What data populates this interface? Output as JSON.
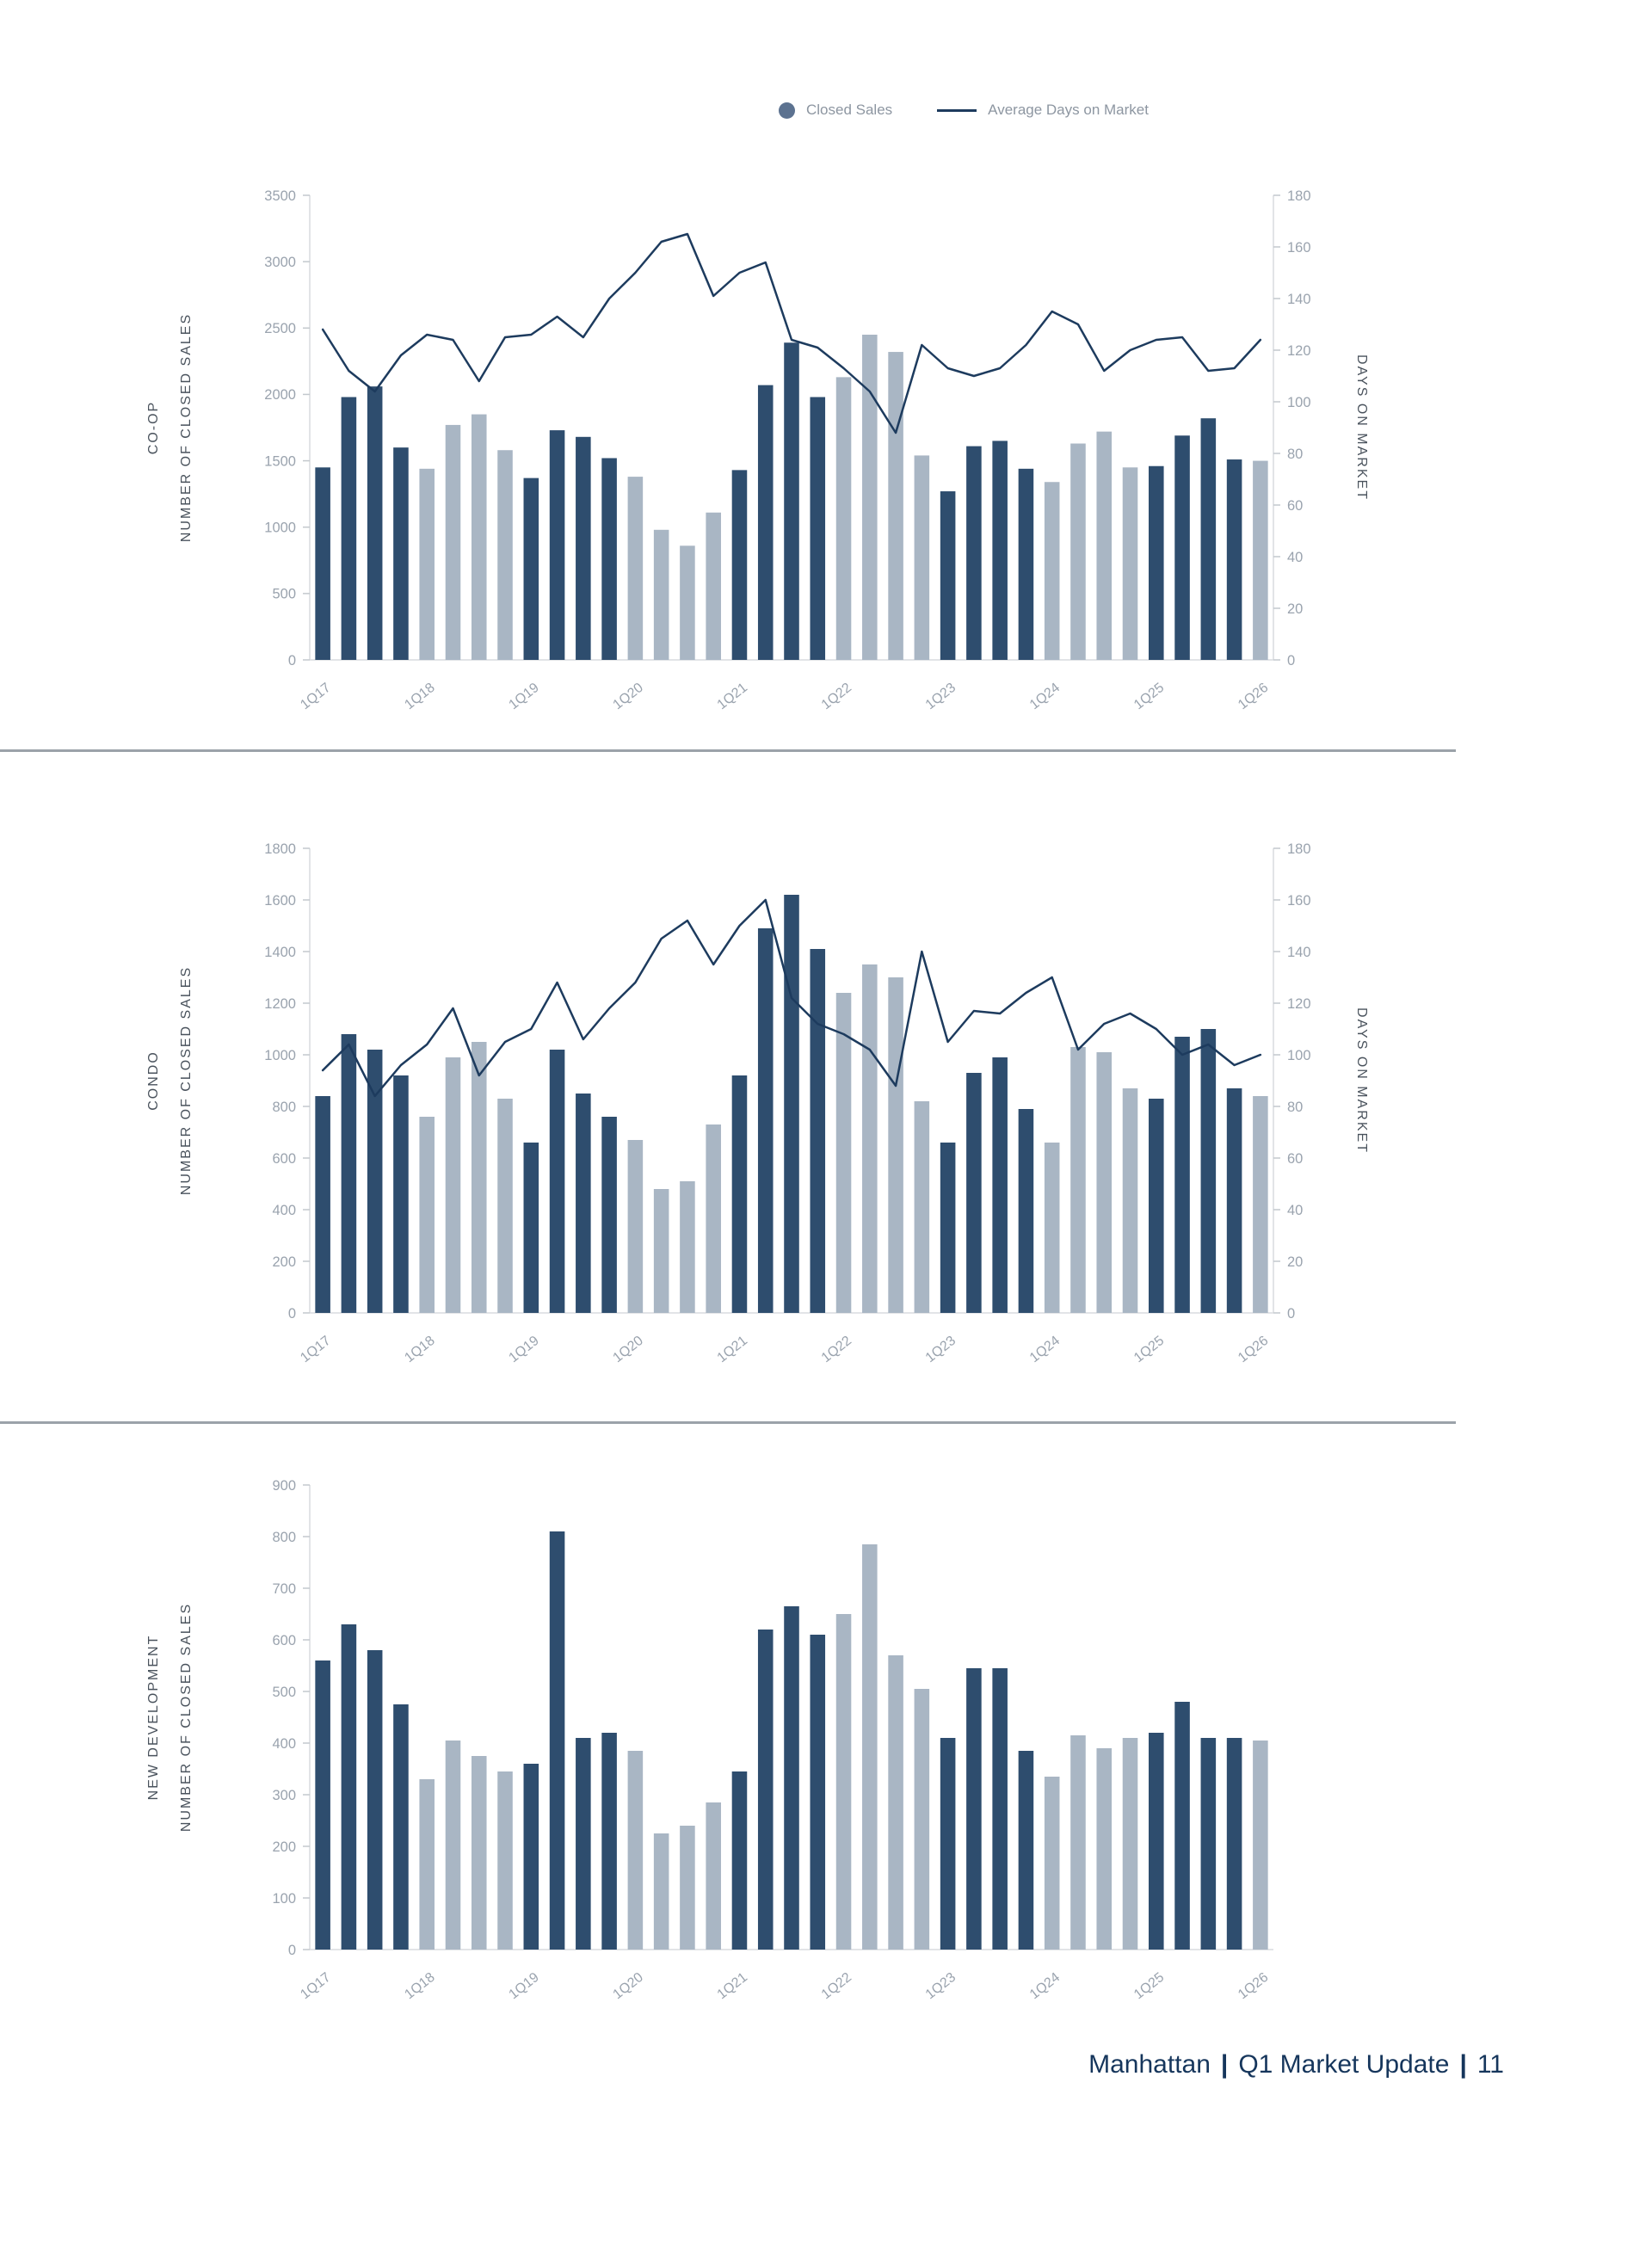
{
  "legend": {
    "closed_sales_label": "Closed Sales",
    "days_on_market_label": "Average Days on Market"
  },
  "footer": {
    "city": "Manhattan",
    "sep": "|",
    "report": "Q1 Market Update",
    "page": "11"
  },
  "colors": {
    "bar_dark": "#2e4d6e",
    "bar_light": "#a9b6c4",
    "line": "#1d3b5e",
    "legend_dot": "#5c7290",
    "axis_text": "#9aa3ae",
    "axis_line": "#d9dcdf",
    "tick": "#c3c8cd",
    "side_label": "#49525c",
    "divider": "#9ba2a9",
    "footer": "#16365c"
  },
  "chart_data": [
    {
      "type": "bar+line",
      "section_label": "CO-OP",
      "ylabel_left": "NUMBER OF CLOSED SALES",
      "ylabel_right": "DAYS ON MARKET",
      "categories": [
        "1Q17",
        "2Q17",
        "3Q17",
        "4Q17",
        "1Q18",
        "2Q18",
        "3Q18",
        "4Q18",
        "1Q19",
        "2Q19",
        "3Q19",
        "4Q19",
        "1Q20",
        "2Q20",
        "3Q20",
        "4Q20",
        "1Q21",
        "2Q21",
        "3Q21",
        "4Q21",
        "1Q22",
        "2Q22",
        "3Q22",
        "4Q22",
        "1Q23",
        "2Q23",
        "3Q23",
        "4Q23",
        "1Q24",
        "2Q24",
        "3Q24",
        "4Q24",
        "1Q25",
        "2Q25",
        "3Q25",
        "4Q25",
        "1Q26"
      ],
      "x_tick_labels": [
        "1Q17",
        "1Q18",
        "1Q19",
        "1Q20",
        "1Q21",
        "1Q22",
        "1Q23",
        "1Q24",
        "1Q25",
        "1Q26"
      ],
      "ylim_left": [
        0,
        3500
      ],
      "yticks_left": [
        0,
        500,
        1000,
        1500,
        2000,
        2500,
        3000,
        3500
      ],
      "ylim_right": [
        0,
        180
      ],
      "yticks_right": [
        0,
        20,
        40,
        60,
        80,
        100,
        120,
        140,
        160,
        180
      ],
      "series": [
        {
          "type": "bar",
          "name": "Closed Sales",
          "axis": "left",
          "values": [
            1450,
            1980,
            2060,
            1600,
            1440,
            1770,
            1850,
            1580,
            1370,
            1730,
            1680,
            1520,
            1380,
            980,
            860,
            1110,
            1430,
            2070,
            2390,
            1980,
            2130,
            2450,
            2320,
            1540,
            1270,
            1610,
            1650,
            1440,
            1340,
            1630,
            1720,
            1450,
            1460,
            1690,
            1820,
            1510,
            1500
          ]
        },
        {
          "type": "line",
          "name": "Average Days on Market",
          "axis": "right",
          "values": [
            128,
            112,
            104,
            118,
            126,
            124,
            108,
            125,
            126,
            133,
            125,
            140,
            150,
            162,
            165,
            141,
            150,
            154,
            124,
            121,
            113,
            104,
            88,
            122,
            113,
            110,
            113,
            122,
            135,
            130,
            112,
            120,
            124,
            125,
            112,
            113,
            124
          ]
        }
      ]
    },
    {
      "type": "bar+line",
      "section_label": "CONDO",
      "ylabel_left": "NUMBER OF CLOSED SALES",
      "ylabel_right": "DAYS ON MARKET",
      "categories": [
        "1Q17",
        "2Q17",
        "3Q17",
        "4Q17",
        "1Q18",
        "2Q18",
        "3Q18",
        "4Q18",
        "1Q19",
        "2Q19",
        "3Q19",
        "4Q19",
        "1Q20",
        "2Q20",
        "3Q20",
        "4Q20",
        "1Q21",
        "2Q21",
        "3Q21",
        "4Q21",
        "1Q22",
        "2Q22",
        "3Q22",
        "4Q22",
        "1Q23",
        "2Q23",
        "3Q23",
        "4Q23",
        "1Q24",
        "2Q24",
        "3Q24",
        "4Q24",
        "1Q25",
        "2Q25",
        "3Q25",
        "4Q25",
        "1Q26"
      ],
      "x_tick_labels": [
        "1Q17",
        "1Q18",
        "1Q19",
        "1Q20",
        "1Q21",
        "1Q22",
        "1Q23",
        "1Q24",
        "1Q25",
        "1Q26"
      ],
      "ylim_left": [
        0,
        1800
      ],
      "yticks_left": [
        0,
        200,
        400,
        600,
        800,
        1000,
        1200,
        1400,
        1600,
        1800
      ],
      "ylim_right": [
        0,
        180
      ],
      "yticks_right": [
        0,
        20,
        40,
        60,
        80,
        100,
        120,
        140,
        160,
        180
      ],
      "series": [
        {
          "type": "bar",
          "name": "Closed Sales",
          "axis": "left",
          "values": [
            840,
            1080,
            1020,
            920,
            760,
            990,
            1050,
            830,
            660,
            1020,
            850,
            760,
            670,
            480,
            510,
            730,
            920,
            1490,
            1620,
            1410,
            1240,
            1350,
            1300,
            820,
            660,
            930,
            990,
            790,
            660,
            1030,
            1010,
            870,
            830,
            1070,
            1100,
            870,
            840
          ]
        },
        {
          "type": "line",
          "name": "Average Days on Market",
          "axis": "right",
          "values": [
            94,
            104,
            84,
            96,
            104,
            118,
            92,
            105,
            110,
            128,
            106,
            118,
            128,
            145,
            152,
            135,
            150,
            160,
            122,
            112,
            108,
            102,
            88,
            140,
            105,
            117,
            116,
            124,
            130,
            102,
            112,
            116,
            110,
            100,
            104,
            96,
            100
          ]
        }
      ]
    },
    {
      "type": "bar",
      "section_label": "NEW DEVELOPMENT",
      "ylabel_left": "NUMBER OF CLOSED SALES",
      "ylabel_right": null,
      "categories": [
        "1Q17",
        "2Q17",
        "3Q17",
        "4Q17",
        "1Q18",
        "2Q18",
        "3Q18",
        "4Q18",
        "1Q19",
        "2Q19",
        "3Q19",
        "4Q19",
        "1Q20",
        "2Q20",
        "3Q20",
        "4Q20",
        "1Q21",
        "2Q21",
        "3Q21",
        "4Q21",
        "1Q22",
        "2Q22",
        "3Q22",
        "4Q22",
        "1Q23",
        "2Q23",
        "3Q23",
        "4Q23",
        "1Q24",
        "2Q24",
        "3Q24",
        "4Q24",
        "1Q25",
        "2Q25",
        "3Q25",
        "4Q25",
        "1Q26"
      ],
      "x_tick_labels": [
        "1Q17",
        "1Q18",
        "1Q19",
        "1Q20",
        "1Q21",
        "1Q22",
        "1Q23",
        "1Q24",
        "1Q25",
        "1Q26"
      ],
      "ylim_left": [
        0,
        900
      ],
      "yticks_left": [
        0,
        100,
        200,
        300,
        400,
        500,
        600,
        700,
        800,
        900
      ],
      "ylim_right": null,
      "yticks_right": null,
      "series": [
        {
          "type": "bar",
          "name": "Closed Sales",
          "axis": "left",
          "values": [
            560,
            630,
            580,
            475,
            330,
            405,
            375,
            345,
            360,
            810,
            410,
            420,
            385,
            225,
            240,
            285,
            345,
            620,
            665,
            610,
            650,
            785,
            570,
            505,
            410,
            545,
            545,
            385,
            335,
            415,
            390,
            410,
            420,
            480,
            410,
            410,
            405
          ]
        }
      ]
    }
  ]
}
